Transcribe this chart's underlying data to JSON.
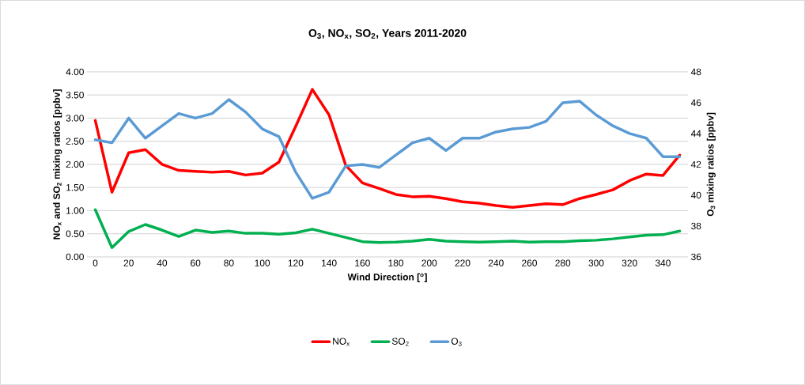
{
  "chart_data": {
    "type": "line",
    "title": "O$_{3}$, NO$_{x}$, SO$_{2}$, Years 2011-2020",
    "xlabel": "Wind Direction [$^{o}$]",
    "ylabel": "NO$_{x}$ and SO$_{2}$ mixing ratios [ppbv]",
    "y2label": "O$_{3}$ mixing ratios [ppbv]",
    "x": [
      0,
      10,
      20,
      30,
      40,
      50,
      60,
      70,
      80,
      90,
      100,
      110,
      120,
      130,
      140,
      150,
      160,
      170,
      180,
      190,
      200,
      210,
      220,
      230,
      240,
      250,
      260,
      270,
      280,
      290,
      300,
      310,
      320,
      330,
      340,
      350
    ],
    "series": [
      {
        "name": "NO$_{x}$",
        "color": "#ff0000",
        "values": [
          2.95,
          1.4,
          2.25,
          2.32,
          2.0,
          1.87,
          1.85,
          1.83,
          1.85,
          1.77,
          1.81,
          2.05,
          2.82,
          3.62,
          3.07,
          1.98,
          1.6,
          1.48,
          1.35,
          1.3,
          1.31,
          1.26,
          1.19,
          1.16,
          1.11,
          1.07,
          1.11,
          1.15,
          1.13,
          1.26,
          1.35,
          1.45,
          1.65,
          1.79,
          1.76,
          2.2
        ]
      },
      {
        "name": "SO$_{2}$",
        "color": "#00b050",
        "values": [
          1.02,
          0.2,
          0.55,
          0.7,
          0.58,
          0.44,
          0.58,
          0.53,
          0.56,
          0.51,
          0.51,
          0.49,
          0.52,
          0.6,
          0.51,
          0.42,
          0.33,
          0.31,
          0.32,
          0.34,
          0.38,
          0.34,
          0.33,
          0.32,
          0.33,
          0.34,
          0.32,
          0.33,
          0.33,
          0.35,
          0.36,
          0.39,
          0.43,
          0.47,
          0.48,
          0.56
        ]
      },
      {
        "name": "O$_{3}$",
        "color": "#5b9bd5",
        "axis": "y2",
        "values": [
          43.6,
          43.4,
          45.0,
          43.7,
          44.5,
          45.3,
          45.0,
          45.3,
          46.2,
          45.4,
          44.3,
          43.8,
          41.5,
          39.8,
          40.2,
          41.9,
          42.0,
          41.8,
          42.6,
          43.4,
          43.7,
          42.9,
          43.7,
          43.7,
          44.1,
          44.3,
          44.4,
          44.8,
          46.0,
          46.1,
          45.2,
          44.5,
          44.0,
          43.7,
          42.5,
          42.5
        ]
      }
    ],
    "xlim": [
      -5,
      355
    ],
    "xticks": [
      0,
      20,
      40,
      60,
      80,
      100,
      120,
      140,
      160,
      180,
      200,
      220,
      240,
      260,
      280,
      300,
      320,
      340
    ],
    "ylim": [
      0,
      4
    ],
    "yticks": [
      {
        "value": 0,
        "label": "0.00"
      },
      {
        "value": 0.5,
        "label": "0.50"
      },
      {
        "value": 1,
        "label": "1.00"
      },
      {
        "value": 1.5,
        "label": "1.50"
      },
      {
        "value": 2,
        "label": "2.00"
      },
      {
        "value": 2.5,
        "label": "2.50"
      },
      {
        "value": 3,
        "label": "3.00"
      },
      {
        "value": 3.5,
        "label": "3.50"
      },
      {
        "value": 4,
        "label": "4.00"
      }
    ],
    "y2lim": [
      36,
      48
    ],
    "y2ticks": [
      36,
      38,
      40,
      42,
      44,
      46,
      48
    ],
    "grid": "y",
    "legend": "bottom"
  }
}
